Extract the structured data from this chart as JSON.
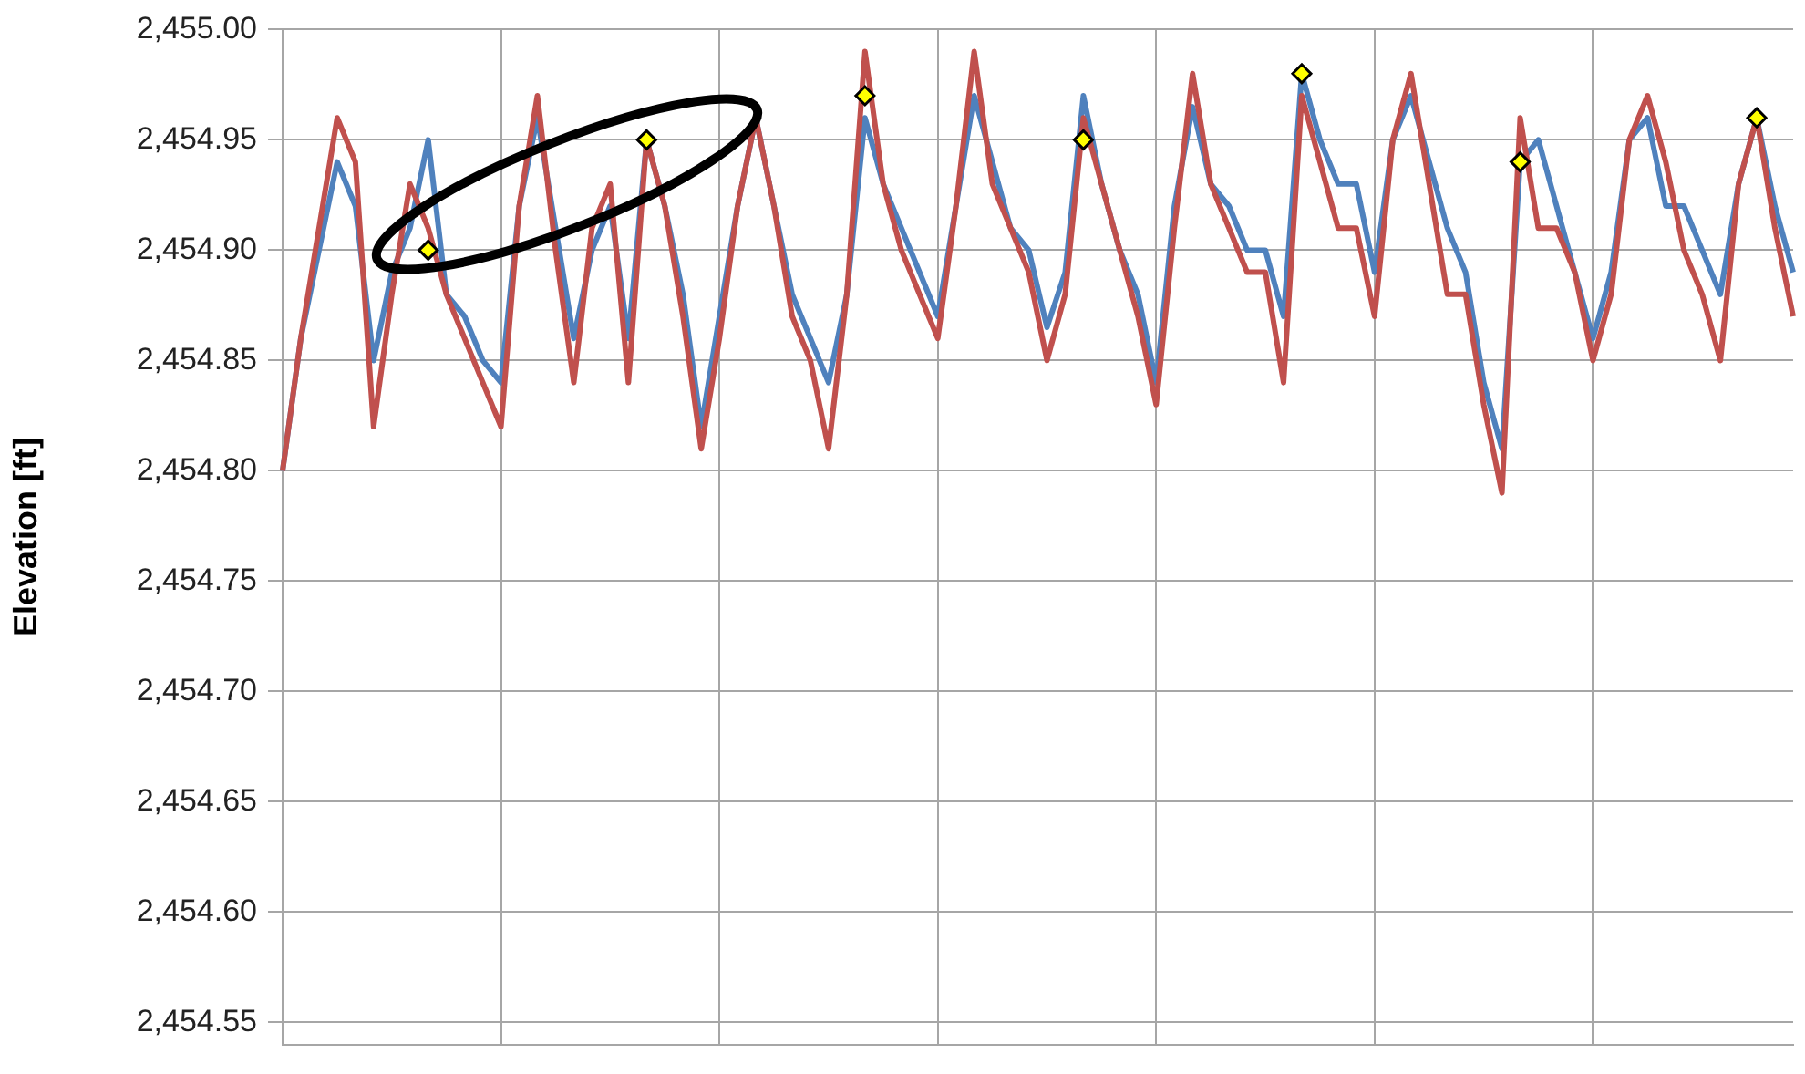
{
  "chart_data": {
    "type": "line",
    "ylabel": "Elevation [ft]",
    "categories": [
      null,
      null,
      null,
      null,
      null,
      null,
      null,
      null,
      null,
      null,
      null,
      null,
      null,
      null,
      null,
      null,
      null,
      null,
      null,
      null,
      null,
      null,
      null,
      null,
      null,
      null,
      null,
      null,
      null,
      null,
      null,
      null,
      null,
      null,
      null,
      null,
      null,
      null,
      null,
      null,
      null,
      null,
      null,
      null,
      null,
      null,
      null,
      null,
      null,
      null,
      null,
      null,
      null,
      null,
      null,
      null,
      null,
      null,
      null,
      null,
      null,
      null,
      null,
      null,
      null,
      null,
      null,
      null,
      null,
      null,
      null,
      null,
      null,
      null,
      null,
      null,
      null,
      null,
      null,
      null,
      null,
      null,
      null,
      null
    ],
    "series": [
      {
        "type": "line",
        "marker": "none",
        "color": "#c0504d",
        "values": [
          2454.8,
          2454.86,
          2454.91,
          2454.96,
          2454.94,
          2454.82,
          2454.88,
          2454.93,
          2454.91,
          2454.88,
          2454.86,
          2454.84,
          2454.82,
          2454.92,
          2454.97,
          2454.9,
          2454.84,
          2454.91,
          2454.93,
          2454.84,
          2454.95,
          2454.92,
          2454.87,
          2454.81,
          2454.86,
          2454.92,
          2454.96,
          2454.92,
          2454.87,
          2454.85,
          2454.81,
          2454.88,
          2454.99,
          2454.93,
          2454.9,
          2454.88,
          2454.86,
          2454.92,
          2454.99,
          2454.93,
          2454.91,
          2454.89,
          2454.85,
          2454.88,
          2454.96,
          2454.93,
          2454.9,
          2454.87,
          2454.83,
          2454.91,
          2454.98,
          2454.93,
          2454.91,
          2454.89,
          2454.89,
          2454.84,
          2454.97,
          2454.94,
          2454.91,
          2454.91,
          2454.87,
          2454.95,
          2454.98,
          2454.93,
          2454.88,
          2454.88,
          2454.83,
          2454.79,
          2454.96,
          2454.91,
          2454.91,
          2454.89,
          2454.85,
          2454.88,
          2454.95,
          2454.97,
          2454.94,
          2454.9,
          2454.88,
          2454.85,
          2454.93,
          2454.96,
          2454.91,
          2454.87
        ]
      },
      {
        "type": "line",
        "marker": "none",
        "color": "#4f81bd",
        "values": [
          2454.8,
          2454.86,
          2454.9,
          2454.94,
          2454.92,
          2454.85,
          2454.89,
          2454.91,
          2454.95,
          2454.88,
          2454.87,
          2454.85,
          2454.84,
          2454.92,
          2454.96,
          2454.91,
          2454.86,
          2454.9,
          2454.92,
          2454.86,
          2454.95,
          2454.92,
          2454.88,
          2454.82,
          2454.87,
          2454.92,
          2454.96,
          2454.92,
          2454.88,
          2454.86,
          2454.84,
          2454.88,
          2454.96,
          2454.93,
          2454.91,
          2454.89,
          2454.87,
          2454.92,
          2454.97,
          2454.94,
          2454.91,
          2454.9,
          2454.865,
          2454.89,
          2454.97,
          2454.93,
          2454.9,
          2454.88,
          2454.84,
          2454.92,
          2454.965,
          2454.93,
          2454.92,
          2454.9,
          2454.9,
          2454.87,
          2454.98,
          2454.95,
          2454.93,
          2454.93,
          2454.89,
          2454.95,
          2454.97,
          2454.94,
          2454.91,
          2454.89,
          2454.84,
          2454.81,
          2454.94,
          2454.95,
          2454.92,
          2454.89,
          2454.86,
          2454.89,
          2454.95,
          2454.96,
          2454.92,
          2454.92,
          2454.9,
          2454.88,
          2454.93,
          2454.96,
          2454.92,
          2454.89
        ]
      },
      {
        "type": "scatter",
        "marker": "diamond",
        "color": "#ffff00",
        "values": [
          null,
          null,
          null,
          null,
          null,
          null,
          null,
          null,
          2454.9,
          null,
          null,
          null,
          null,
          null,
          null,
          null,
          null,
          null,
          null,
          null,
          2454.95,
          null,
          null,
          null,
          null,
          null,
          null,
          null,
          null,
          null,
          null,
          null,
          2454.97,
          null,
          null,
          null,
          null,
          null,
          null,
          null,
          null,
          null,
          null,
          null,
          2454.95,
          null,
          null,
          null,
          null,
          null,
          null,
          null,
          null,
          null,
          null,
          null,
          2454.98,
          null,
          null,
          null,
          null,
          null,
          null,
          null,
          null,
          null,
          null,
          null,
          2454.94,
          null,
          null,
          null,
          null,
          null,
          null,
          null,
          null,
          null,
          null,
          null,
          null,
          2454.96,
          null,
          null
        ]
      }
    ],
    "ylim": [
      2454.54,
      2455.0
    ],
    "yticks": [
      {
        "value": 2454.55,
        "label": "2,454.55"
      },
      {
        "value": 2454.6,
        "label": "2,454.60"
      },
      {
        "value": 2454.65,
        "label": "2,454.65"
      },
      {
        "value": 2454.7,
        "label": "2,454.70"
      },
      {
        "value": 2454.75,
        "label": "2,454.75"
      },
      {
        "value": 2454.8,
        "label": "2,454.80"
      },
      {
        "value": 2454.85,
        "label": "2,454.85"
      },
      {
        "value": 2454.9,
        "label": "2,454.90"
      },
      {
        "value": 2454.95,
        "label": "2,454.95"
      },
      {
        "value": 2455.0,
        "label": "2,455.00"
      }
    ],
    "grid": true,
    "legend": false,
    "tick_labels": "y"
  }
}
